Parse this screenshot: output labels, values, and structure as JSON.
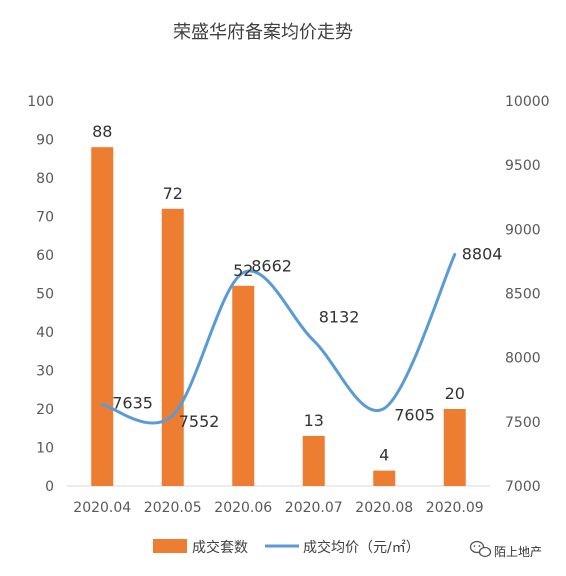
{
  "chart_data": {
    "type": "bar",
    "title": "荣盛华府备案均价走势",
    "categories": [
      "2020.04",
      "2020.05",
      "2020.06",
      "2020.07",
      "2020.08",
      "2020.09"
    ],
    "series": [
      {
        "name": "成交套数",
        "type": "bar",
        "axis": "left",
        "color": "#ED7D31",
        "values": [
          88,
          72,
          52,
          13,
          4,
          20
        ]
      },
      {
        "name": "成交均价（元/㎡）",
        "type": "line",
        "axis": "right",
        "color": "#5B9BD5",
        "values": [
          7635,
          7552,
          8662,
          8132,
          7605,
          8804
        ]
      }
    ],
    "y_left": {
      "range": [
        0,
        100
      ],
      "ticks": [
        "0",
        "10",
        "20",
        "30",
        "40",
        "50",
        "60",
        "70",
        "80",
        "90",
        "100"
      ]
    },
    "y_right": {
      "range": [
        7000,
        10000
      ],
      "ticks": [
        "7000",
        "7500",
        "8000",
        "8500",
        "9000",
        "9500",
        "10000"
      ]
    },
    "legend_position": "bottom",
    "grid": false
  },
  "watermark": {
    "text": "陌上地产",
    "icon": "wechat-icon"
  }
}
